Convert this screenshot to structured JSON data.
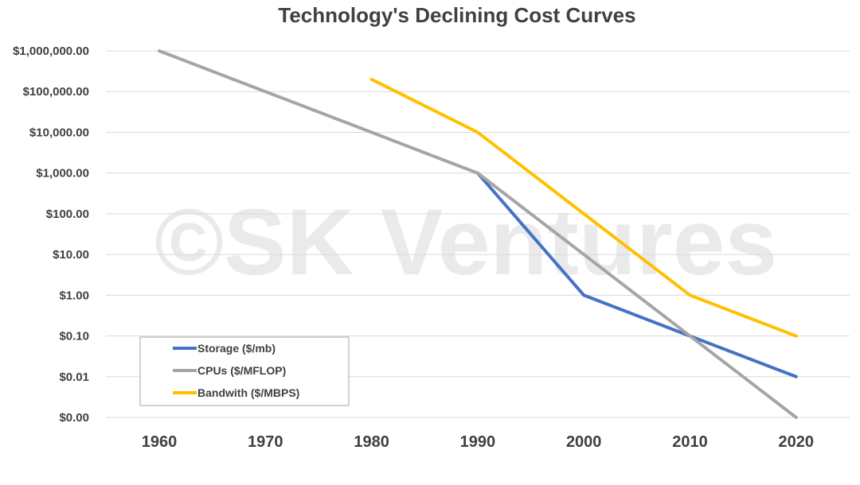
{
  "chart_data": {
    "type": "line",
    "title": "Technology's Declining Cost Curves",
    "watermark": "©SK Ventures",
    "xlabel": "",
    "ylabel": "",
    "y_scale": "log",
    "ylim": [
      0.001,
      1000000
    ],
    "categories": [
      "1960",
      "1970",
      "1980",
      "1990",
      "2000",
      "2010",
      "2020"
    ],
    "y_ticks": [
      {
        "value": 1000000,
        "label": "$1,000,000.00"
      },
      {
        "value": 100000,
        "label": "$100,000.00"
      },
      {
        "value": 10000,
        "label": "$10,000.00"
      },
      {
        "value": 1000,
        "label": "$1,000.00"
      },
      {
        "value": 100,
        "label": "$100.00"
      },
      {
        "value": 10,
        "label": "$10.00"
      },
      {
        "value": 1,
        "label": "$1.00"
      },
      {
        "value": 0.1,
        "label": "$0.10"
      },
      {
        "value": 0.01,
        "label": "$0.01"
      },
      {
        "value": 0.001,
        "label": "$0.00"
      }
    ],
    "series": [
      {
        "name": "Storage ($/mb)",
        "color": "#4472c4",
        "values": [
          null,
          null,
          null,
          1000,
          1,
          0.1,
          0.01
        ]
      },
      {
        "name": "CPUs ($/MFLOP)",
        "color": "#a5a5a5",
        "values": [
          1000000,
          100000,
          10000,
          1000,
          10,
          0.1,
          0.001
        ]
      },
      {
        "name": "Bandwith ($/MBPS)",
        "color": "#ffc000",
        "values": [
          null,
          null,
          200000,
          10000,
          100,
          1,
          0.1
        ]
      }
    ],
    "legend_position": "bottom-left"
  }
}
